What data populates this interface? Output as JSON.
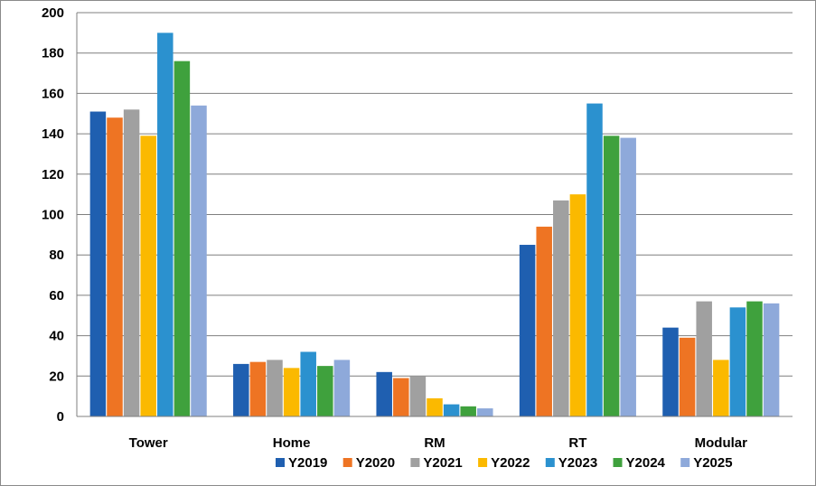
{
  "chart_data": {
    "type": "bar",
    "title": "",
    "xlabel": "",
    "ylabel": "",
    "ylim": [
      0,
      200
    ],
    "ytick_step": 20,
    "yticks": [
      "0",
      "20",
      "40",
      "60",
      "80",
      "100",
      "120",
      "140",
      "160",
      "180",
      "200"
    ],
    "grid": true,
    "legend_position": "bottom-right",
    "categories": [
      "Tower",
      "Home",
      "RM",
      "RT",
      "Modular"
    ],
    "series": [
      {
        "name": "Y2019",
        "color": "#1f5fb0",
        "values": [
          151,
          26,
          22,
          85,
          44
        ]
      },
      {
        "name": "Y2020",
        "color": "#ee7423",
        "values": [
          148,
          27,
          19,
          94,
          39
        ]
      },
      {
        "name": "Y2021",
        "color": "#a0a0a0",
        "values": [
          152,
          28,
          20,
          107,
          57
        ]
      },
      {
        "name": "Y2022",
        "color": "#fbb900",
        "values": [
          139,
          24,
          9,
          110,
          28
        ]
      },
      {
        "name": "Y2023",
        "color": "#2b91cf",
        "values": [
          190,
          32,
          6,
          155,
          54
        ]
      },
      {
        "name": "Y2024",
        "color": "#3fa13d",
        "values": [
          176,
          25,
          5,
          139,
          57
        ]
      },
      {
        "name": "Y2025",
        "color": "#8ea9da",
        "values": [
          154,
          28,
          4,
          138,
          56
        ]
      }
    ]
  }
}
